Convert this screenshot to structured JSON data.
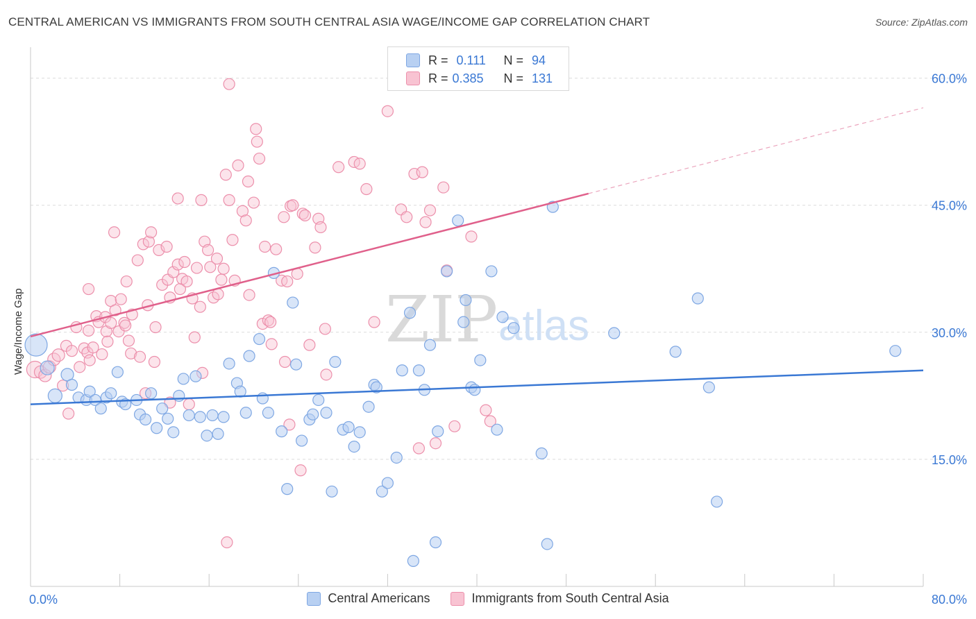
{
  "title": "CENTRAL AMERICAN VS IMMIGRANTS FROM SOUTH CENTRAL ASIA WAGE/INCOME GAP CORRELATION CHART",
  "source": "Source: ZipAtlas.com",
  "watermark": {
    "zip": "ZIP",
    "atlas": "atlas"
  },
  "legend": {
    "series": [
      {
        "r_label": "R =",
        "r_value": "0.111",
        "n_label": "N =",
        "n_value": "94",
        "fill": "#b8d0f2",
        "stroke": "#7ea7e3"
      },
      {
        "r_label": "R =",
        "r_value": "0.385",
        "n_label": "N =",
        "n_value": "131",
        "fill": "#f8c3d2",
        "stroke": "#ec8fab"
      }
    ]
  },
  "bottom_legend": [
    "Central Americans",
    "Immigrants from South Central Asia"
  ],
  "chart_data": {
    "type": "scatter",
    "xlabel": "",
    "ylabel": "Wage/Income Gap",
    "xlim": [
      0,
      80
    ],
    "ylim": [
      0,
      63
    ],
    "x_tick_labels": [
      "0.0%",
      "80.0%"
    ],
    "y_ticks": [
      15,
      30,
      45,
      60
    ],
    "y_tick_labels": [
      "15.0%",
      "30.0%",
      "45.0%",
      "60.0%"
    ],
    "grid": true,
    "colors": {
      "blue": "#3a78d4",
      "pink": "#e0608b",
      "blue_fill": "#b8d0f2",
      "pink_fill": "#f8c3d2",
      "axis_text": "#3a78d4"
    },
    "series": [
      {
        "name": "Central Americans",
        "trend": {
          "x": [
            0,
            80
          ],
          "y": [
            21.5,
            25.5
          ],
          "dashed_from": null
        },
        "points": [
          [
            0.5,
            28.5,
            16
          ],
          [
            1.5,
            25.8,
            10
          ],
          [
            2.2,
            22.5,
            10
          ],
          [
            3.3,
            25.0,
            9
          ],
          [
            3.7,
            23.8,
            8
          ],
          [
            4.3,
            22.3,
            8
          ],
          [
            5.0,
            22.0,
            8
          ],
          [
            5.3,
            23.0,
            8
          ],
          [
            5.8,
            22.0,
            8
          ],
          [
            6.3,
            21.0,
            8
          ],
          [
            6.8,
            22.3,
            8
          ],
          [
            7.2,
            22.8,
            8
          ],
          [
            7.8,
            25.3,
            8
          ],
          [
            8.2,
            21.8,
            8
          ],
          [
            8.5,
            21.5,
            8
          ],
          [
            9.5,
            22.0,
            8
          ],
          [
            9.8,
            20.3,
            8
          ],
          [
            10.3,
            19.7,
            8
          ],
          [
            10.8,
            22.8,
            8
          ],
          [
            11.3,
            18.7,
            8
          ],
          [
            11.8,
            21.0,
            8
          ],
          [
            12.3,
            19.8,
            8
          ],
          [
            12.8,
            18.2,
            8
          ],
          [
            13.3,
            22.5,
            8
          ],
          [
            13.7,
            24.5,
            8
          ],
          [
            14.2,
            20.2,
            8
          ],
          [
            14.8,
            24.8,
            8
          ],
          [
            15.2,
            20.0,
            8
          ],
          [
            15.8,
            17.8,
            8
          ],
          [
            16.3,
            20.2,
            8
          ],
          [
            16.8,
            18.0,
            8
          ],
          [
            17.3,
            20.0,
            8
          ],
          [
            17.8,
            26.3,
            8
          ],
          [
            18.5,
            24.0,
            8
          ],
          [
            18.8,
            23.0,
            8
          ],
          [
            19.3,
            20.5,
            8
          ],
          [
            19.6,
            27.2,
            8
          ],
          [
            20.5,
            29.2,
            8
          ],
          [
            20.8,
            22.2,
            8
          ],
          [
            21.3,
            20.5,
            8
          ],
          [
            21.8,
            37.0,
            8
          ],
          [
            22.5,
            18.3,
            8
          ],
          [
            23.0,
            11.5,
            8
          ],
          [
            23.5,
            33.5,
            8
          ],
          [
            23.8,
            26.2,
            8
          ],
          [
            24.3,
            17.2,
            8
          ],
          [
            25.0,
            19.7,
            8
          ],
          [
            25.3,
            20.3,
            8
          ],
          [
            25.8,
            22.0,
            8
          ],
          [
            26.5,
            20.5,
            8
          ],
          [
            27.0,
            11.2,
            8
          ],
          [
            27.3,
            26.5,
            8
          ],
          [
            28.0,
            18.5,
            8
          ],
          [
            28.5,
            18.8,
            8
          ],
          [
            29.0,
            16.5,
            8
          ],
          [
            29.5,
            18.2,
            8
          ],
          [
            30.3,
            21.2,
            8
          ],
          [
            30.8,
            23.8,
            8
          ],
          [
            31.0,
            23.5,
            8
          ],
          [
            31.5,
            11.2,
            8
          ],
          [
            32.0,
            12.2,
            8
          ],
          [
            32.8,
            15.2,
            8
          ],
          [
            33.3,
            25.5,
            8
          ],
          [
            34.0,
            32.3,
            8
          ],
          [
            34.3,
            3.0,
            8
          ],
          [
            34.8,
            25.5,
            8
          ],
          [
            35.3,
            23.2,
            8
          ],
          [
            35.8,
            28.5,
            8
          ],
          [
            36.3,
            5.2,
            8
          ],
          [
            36.5,
            18.3,
            8
          ],
          [
            37.3,
            37.2,
            8
          ],
          [
            38.3,
            43.2,
            8
          ],
          [
            38.8,
            31.2,
            8
          ],
          [
            39.5,
            23.5,
            8
          ],
          [
            39.8,
            23.2,
            8
          ],
          [
            39.0,
            33.8,
            8
          ],
          [
            40.3,
            26.7,
            8
          ],
          [
            41.3,
            37.2,
            8
          ],
          [
            41.8,
            18.5,
            8
          ],
          [
            42.3,
            31.8,
            8
          ],
          [
            43.3,
            30.5,
            8
          ],
          [
            45.8,
            15.7,
            8
          ],
          [
            46.3,
            5.0,
            8
          ],
          [
            46.8,
            44.8,
            8
          ],
          [
            52.3,
            29.9,
            8
          ],
          [
            57.8,
            27.7,
            8
          ],
          [
            59.8,
            34.0,
            8
          ],
          [
            60.8,
            23.5,
            8
          ],
          [
            61.5,
            10.0,
            8
          ],
          [
            77.5,
            27.8,
            8
          ]
        ]
      },
      {
        "name": "Immigrants from South Central Asia",
        "trend": {
          "x": [
            0,
            80
          ],
          "y": [
            29.5,
            56.5
          ],
          "dashed_from": 50
        },
        "points": [
          [
            0.4,
            25.6,
            12
          ],
          [
            0.9,
            25.3,
            9
          ],
          [
            1.3,
            24.9,
            9
          ],
          [
            1.7,
            25.9,
            9
          ],
          [
            2.1,
            26.8,
            9
          ],
          [
            2.5,
            27.3,
            9
          ],
          [
            2.9,
            23.7,
            8
          ],
          [
            3.2,
            28.4,
            8
          ],
          [
            3.4,
            20.4,
            8
          ],
          [
            3.7,
            27.8,
            8
          ],
          [
            4.1,
            30.6,
            8
          ],
          [
            4.4,
            25.9,
            8
          ],
          [
            4.8,
            28.1,
            8
          ],
          [
            5.2,
            30.2,
            8
          ],
          [
            5.1,
            27.6,
            8
          ],
          [
            5.3,
            26.7,
            8
          ],
          [
            5.2,
            35.1,
            8
          ],
          [
            5.6,
            28.2,
            8
          ],
          [
            5.9,
            31.9,
            8
          ],
          [
            6.1,
            31.2,
            8
          ],
          [
            6.4,
            27.4,
            8
          ],
          [
            6.8,
            30.1,
            8
          ],
          [
            6.7,
            31.8,
            8
          ],
          [
            6.9,
            28.9,
            8
          ],
          [
            7.2,
            31.1,
            8
          ],
          [
            7.2,
            33.7,
            8
          ],
          [
            7.5,
            41.8,
            8
          ],
          [
            7.6,
            32.6,
            8
          ],
          [
            7.9,
            30.1,
            8
          ],
          [
            8.1,
            33.9,
            8
          ],
          [
            8.4,
            31.1,
            8
          ],
          [
            8.5,
            30.8,
            8
          ],
          [
            8.6,
            36.0,
            8
          ],
          [
            8.8,
            29.0,
            8
          ],
          [
            9.0,
            27.5,
            8
          ],
          [
            9.1,
            32.1,
            8
          ],
          [
            9.6,
            38.5,
            8
          ],
          [
            9.8,
            27.1,
            8
          ],
          [
            10.1,
            40.4,
            8
          ],
          [
            10.3,
            22.8,
            8
          ],
          [
            10.5,
            33.2,
            8
          ],
          [
            10.6,
            40.7,
            8
          ],
          [
            10.8,
            41.8,
            8
          ],
          [
            11.1,
            26.5,
            8
          ],
          [
            11.2,
            30.6,
            8
          ],
          [
            11.5,
            39.7,
            8
          ],
          [
            11.8,
            35.6,
            8
          ],
          [
            12.2,
            40.1,
            8
          ],
          [
            12.3,
            36.2,
            8
          ],
          [
            12.5,
            34.1,
            8
          ],
          [
            12.5,
            21.7,
            8
          ],
          [
            12.8,
            37.1,
            8
          ],
          [
            13.2,
            38.0,
            8
          ],
          [
            13.4,
            35.1,
            8
          ],
          [
            13.2,
            45.8,
            8
          ],
          [
            13.6,
            36.3,
            8
          ],
          [
            13.8,
            38.3,
            8
          ],
          [
            14.0,
            36.0,
            8
          ],
          [
            14.5,
            34.0,
            8
          ],
          [
            14.7,
            29.4,
            8
          ],
          [
            14.9,
            37.6,
            8
          ],
          [
            15.2,
            33.0,
            8
          ],
          [
            15.4,
            25.2,
            8
          ],
          [
            15.3,
            45.6,
            8
          ],
          [
            15.6,
            40.7,
            8
          ],
          [
            15.9,
            39.7,
            8
          ],
          [
            16.1,
            37.7,
            8
          ],
          [
            16.4,
            34.1,
            8
          ],
          [
            16.7,
            38.7,
            8
          ],
          [
            16.8,
            34.5,
            8
          ],
          [
            17.1,
            36.2,
            8
          ],
          [
            17.3,
            37.5,
            8
          ],
          [
            17.5,
            48.6,
            8
          ],
          [
            17.8,
            45.6,
            8
          ],
          [
            17.8,
            59.3,
            8
          ],
          [
            17.6,
            5.2,
            8
          ],
          [
            18.1,
            40.9,
            8
          ],
          [
            18.3,
            36.1,
            8
          ],
          [
            18.6,
            49.7,
            8
          ],
          [
            19.0,
            44.3,
            8
          ],
          [
            19.3,
            43.2,
            8
          ],
          [
            19.5,
            47.8,
            8
          ],
          [
            19.6,
            34.4,
            8
          ],
          [
            20.0,
            45.3,
            8
          ],
          [
            20.2,
            54.0,
            8
          ],
          [
            20.3,
            52.5,
            8
          ],
          [
            20.5,
            50.5,
            8
          ],
          [
            20.8,
            31.0,
            8
          ],
          [
            21.0,
            40.1,
            8
          ],
          [
            21.3,
            31.4,
            8
          ],
          [
            21.5,
            31.2,
            8
          ],
          [
            21.6,
            28.6,
            8
          ],
          [
            22.0,
            39.8,
            8
          ],
          [
            22.5,
            36.1,
            8
          ],
          [
            22.7,
            43.6,
            8
          ],
          [
            23.0,
            36.0,
            8
          ],
          [
            23.3,
            44.9,
            8
          ],
          [
            23.5,
            45.0,
            8
          ],
          [
            23.2,
            19.1,
            8
          ],
          [
            23.9,
            36.9,
            8
          ],
          [
            24.4,
            44.0,
            8
          ],
          [
            24.6,
            43.8,
            8
          ],
          [
            24.2,
            13.7,
            8
          ],
          [
            25.0,
            28.5,
            8
          ],
          [
            25.5,
            40.0,
            8
          ],
          [
            25.8,
            43.4,
            8
          ],
          [
            26.0,
            42.4,
            8
          ],
          [
            26.4,
            30.4,
            8
          ],
          [
            27.6,
            49.5,
            8
          ],
          [
            29.0,
            50.1,
            8
          ],
          [
            29.5,
            49.9,
            8
          ],
          [
            30.1,
            46.9,
            8
          ],
          [
            30.8,
            31.2,
            8
          ],
          [
            32.0,
            56.1,
            8
          ],
          [
            33.2,
            44.5,
            8
          ],
          [
            33.7,
            43.6,
            8
          ],
          [
            34.4,
            48.7,
            8
          ],
          [
            34.8,
            16.3,
            8
          ],
          [
            35.1,
            48.9,
            8
          ],
          [
            35.4,
            43.0,
            8
          ],
          [
            35.8,
            44.4,
            8
          ],
          [
            36.3,
            16.9,
            8
          ],
          [
            37.0,
            47.1,
            8
          ],
          [
            37.3,
            37.3,
            8
          ],
          [
            38.0,
            18.9,
            8
          ],
          [
            39.5,
            41.3,
            8
          ],
          [
            40.8,
            20.8,
            8
          ],
          [
            41.2,
            19.5,
            8
          ],
          [
            14.2,
            21.5,
            8
          ],
          [
            22.8,
            26.5,
            8
          ],
          [
            26.5,
            25.0,
            8
          ]
        ]
      }
    ]
  }
}
